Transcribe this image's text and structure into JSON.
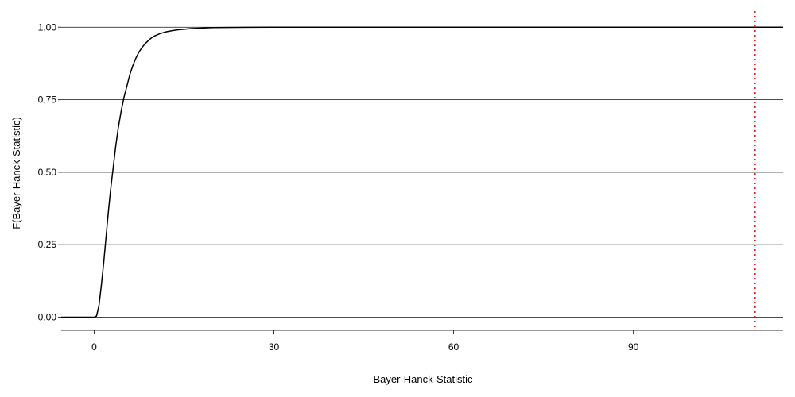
{
  "chart_data": {
    "type": "line",
    "title": "",
    "xlabel": "Bayer-Hanck-Statistic",
    "ylabel": "F(Bayer-Hanck-Statistic)",
    "xlim": [
      -5.5,
      115
    ],
    "ylim": [
      -0.045,
      1.05
    ],
    "x_ticks": [
      0,
      30,
      60,
      90
    ],
    "x_tick_labels": [
      "0",
      "30",
      "60",
      "90"
    ],
    "y_ticks": [
      0,
      0.25,
      0.5,
      0.75,
      1.0
    ],
    "y_tick_labels": [
      "0.00",
      "0.25",
      "0.50",
      "0.75",
      "1.00"
    ],
    "grid": "horizontal",
    "series": [
      {
        "color": "#000000",
        "x": [
          -5.5,
          0,
          0.4,
          0.8,
          1.2,
          1.6,
          2.0,
          2.4,
          2.8,
          3.2,
          3.6,
          4.0,
          4.5,
          5.0,
          5.5,
          6.0,
          6.5,
          7.0,
          7.5,
          8.0,
          8.5,
          9.0,
          9.5,
          10.0,
          11.0,
          12.0,
          13.0,
          14.0,
          15.0,
          16.0,
          17.0,
          18.0,
          19.0,
          20.0,
          22.0,
          24.0,
          26.0,
          30.0,
          40.0,
          60.0,
          80.0,
          100.0,
          115.0
        ],
        "y": [
          0,
          0,
          0.004,
          0.04,
          0.11,
          0.19,
          0.28,
          0.37,
          0.45,
          0.52,
          0.59,
          0.65,
          0.71,
          0.76,
          0.8,
          0.84,
          0.87,
          0.895,
          0.915,
          0.93,
          0.943,
          0.953,
          0.962,
          0.969,
          0.978,
          0.984,
          0.988,
          0.991,
          0.993,
          0.995,
          0.996,
          0.997,
          0.998,
          0.9985,
          0.999,
          0.9995,
          0.9998,
          1.0,
          1.0,
          1.0,
          1.0,
          1.0,
          1.0
        ]
      }
    ],
    "reference_lines": [
      {
        "axis": "x",
        "value": 110.3,
        "color": "#e41a1c",
        "style": "dotted"
      }
    ]
  }
}
